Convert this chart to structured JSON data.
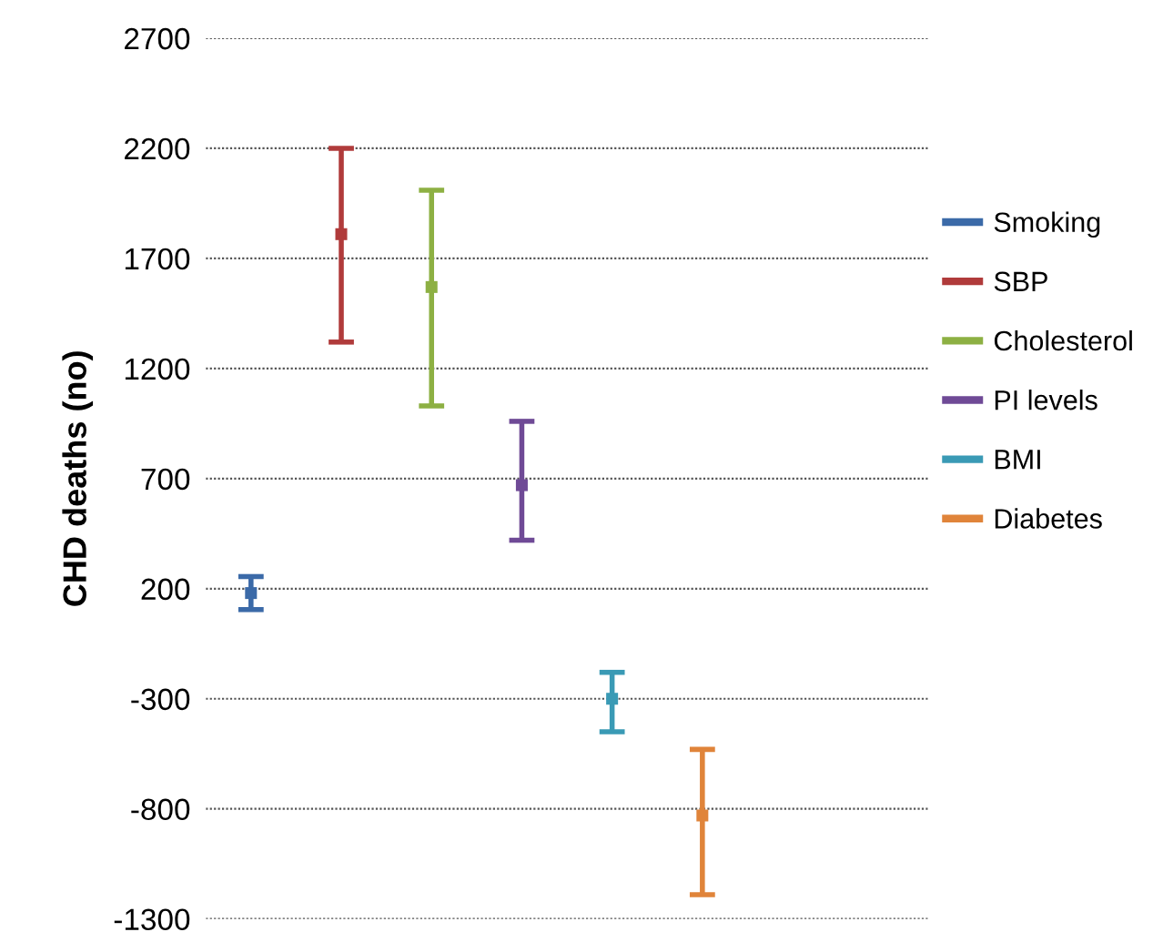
{
  "chart_data": {
    "type": "scatter",
    "ylabel": "CHD deaths (no)",
    "categories": [
      null,
      null,
      null,
      null,
      null,
      null,
      null,
      null
    ],
    "series": [
      {
        "name": "Smoking",
        "color": "#3b6aa8",
        "values": [
          180,
          null,
          null,
          null,
          null,
          null,
          null,
          null
        ],
        "errors": [
          [
            105,
            255
          ],
          null,
          null,
          null,
          null,
          null,
          null,
          null
        ]
      },
      {
        "name": "SBP",
        "color": "#b03b3b",
        "values": [
          null,
          1810,
          null,
          null,
          null,
          null,
          null,
          null
        ],
        "errors": [
          null,
          [
            1320,
            2200
          ],
          null,
          null,
          null,
          null,
          null,
          null
        ]
      },
      {
        "name": "Cholesterol",
        "color": "#8db043",
        "values": [
          null,
          null,
          1570,
          null,
          null,
          null,
          null,
          null
        ],
        "errors": [
          null,
          null,
          [
            1030,
            2010
          ],
          null,
          null,
          null,
          null,
          null
        ]
      },
      {
        "name": "PI levels",
        "color": "#6f4a96",
        "values": [
          null,
          null,
          null,
          670,
          null,
          null,
          null,
          null
        ],
        "errors": [
          null,
          null,
          null,
          [
            420,
            960
          ],
          null,
          null,
          null,
          null
        ]
      },
      {
        "name": "BMI",
        "color": "#3a9ab5",
        "values": [
          null,
          null,
          null,
          null,
          -300,
          null,
          null,
          null
        ],
        "errors": [
          null,
          null,
          null,
          null,
          [
            -450,
            -180
          ],
          null,
          null,
          null
        ]
      },
      {
        "name": "Diabetes",
        "color": "#e0843a",
        "values": [
          null,
          null,
          null,
          null,
          null,
          -830,
          null,
          null
        ],
        "errors": [
          null,
          null,
          null,
          null,
          null,
          [
            -1190,
            -530
          ],
          null,
          null
        ]
      }
    ],
    "ylim": [
      -1300,
      2700
    ],
    "yticks": [
      -1300,
      -800,
      -300,
      200,
      700,
      1200,
      1700,
      2200,
      2700
    ],
    "marker": "square",
    "grid": "y",
    "legend": "right",
    "tick_labels": "y"
  }
}
